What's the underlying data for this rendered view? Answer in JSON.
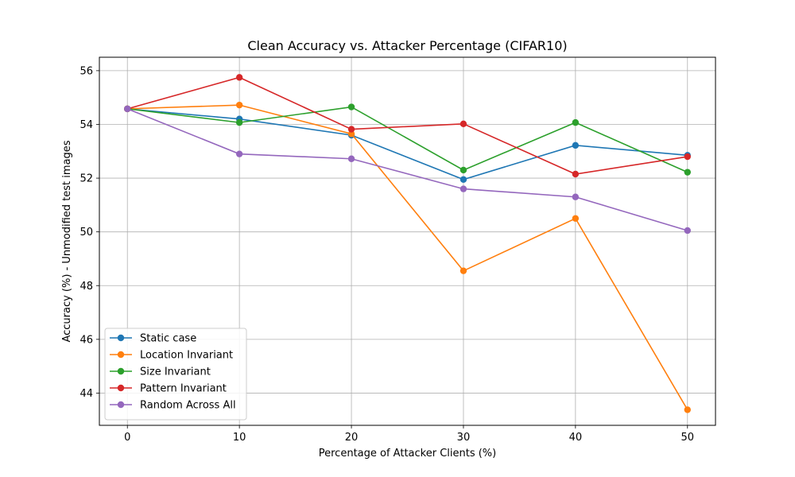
{
  "chart_data": {
    "type": "line",
    "title": "Clean Accuracy vs. Attacker Percentage (CIFAR10)",
    "xlabel": "Percentage of Attacker Clients (%)",
    "ylabel": "Accuracy (%) - Unmodified test images",
    "x": [
      0,
      10,
      20,
      30,
      40,
      50
    ],
    "xticks": [
      0,
      10,
      20,
      30,
      40,
      50
    ],
    "yticks": [
      44,
      46,
      48,
      50,
      52,
      54,
      56
    ],
    "xlim": [
      -2.5,
      52.5
    ],
    "ylim": [
      42.8,
      56.5
    ],
    "grid": true,
    "legend_position": "lower-left",
    "series": [
      {
        "name": "Static case",
        "color": "#1f77b4",
        "values": [
          54.58,
          54.2,
          53.6,
          51.95,
          53.22,
          52.85
        ]
      },
      {
        "name": "Location Invariant",
        "color": "#ff7f0e",
        "values": [
          54.58,
          54.72,
          53.65,
          48.55,
          50.5,
          43.38
        ]
      },
      {
        "name": "Size Invariant",
        "color": "#2ca02c",
        "values": [
          54.58,
          54.07,
          54.65,
          52.3,
          54.07,
          52.22
        ]
      },
      {
        "name": "Pattern Invariant",
        "color": "#d62728",
        "values": [
          54.58,
          55.75,
          53.82,
          54.02,
          52.15,
          52.8
        ]
      },
      {
        "name": "Random Across All",
        "color": "#9467bd",
        "values": [
          54.58,
          52.9,
          52.72,
          51.6,
          51.3,
          50.05
        ]
      }
    ]
  }
}
